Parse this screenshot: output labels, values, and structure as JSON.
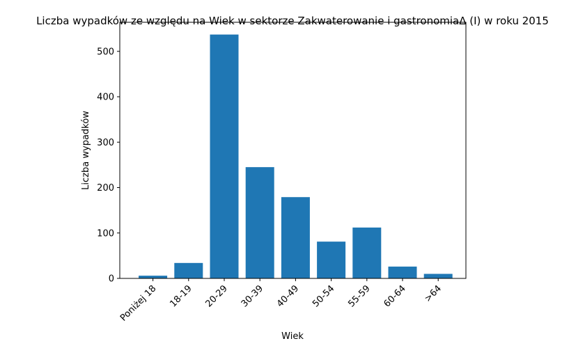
{
  "chart_data": {
    "type": "bar",
    "title": "Liczba wypadków ze względu na Wiek w sektorze Zakwaterowanie i gastronomiaΔ (I) w roku 2015",
    "xlabel": "Wiek",
    "ylabel": "Liczba wypadków",
    "categories": [
      "Poniżej 18",
      "18-19",
      "20-29",
      "30-39",
      "40-49",
      "50-54",
      "55-59",
      "60-64",
      ">64"
    ],
    "values": [
      6,
      34,
      537,
      245,
      179,
      81,
      112,
      26,
      10
    ],
    "ylim": [
      0,
      564
    ],
    "yticks": [
      0,
      100,
      200,
      300,
      400,
      500
    ],
    "grid": false,
    "bar_color": "#1f77b4"
  }
}
